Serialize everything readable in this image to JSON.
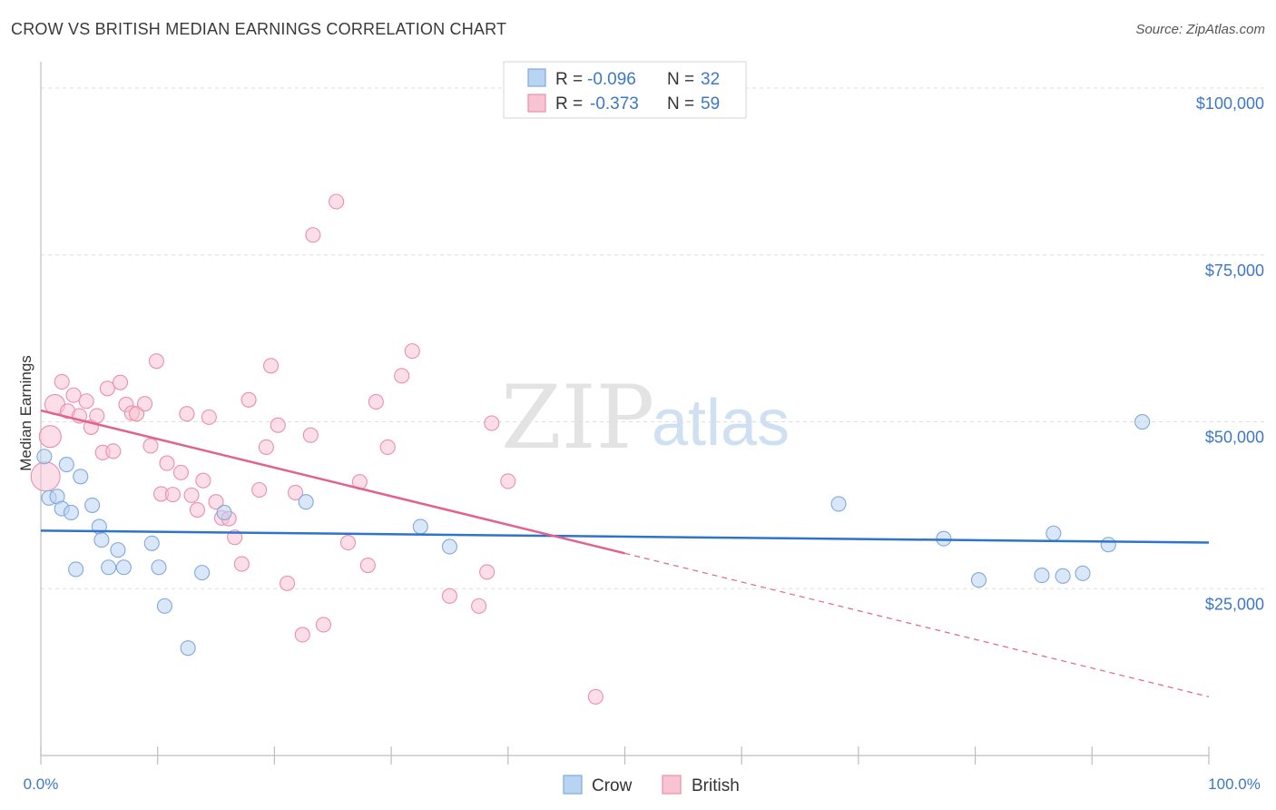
{
  "title": "CROW VS BRITISH MEDIAN EARNINGS CORRELATION CHART",
  "source": "Source: ZipAtlas.com",
  "watermark": {
    "part1": "ZIP",
    "part2": "atlas"
  },
  "legend": {
    "rows": [
      {
        "r_label": "R =",
        "r_value": "-0.096",
        "n_label": "N =",
        "n_value": "32"
      },
      {
        "r_label": "R =",
        "r_value": "-0.373",
        "n_label": "N =",
        "n_value": "59"
      }
    ]
  },
  "bottom_legend": [
    "Crow",
    "British"
  ],
  "colors": {
    "crow_fill": "#b9d3f2",
    "crow_stroke": "#7fa9dc",
    "crow_line": "#2f74cc",
    "british_fill": "#f8c3d3",
    "british_stroke": "#ea8fae",
    "british_line": "#e2628e",
    "tick_text": "#3c78c8",
    "grid": "#dedede"
  },
  "chart_data": {
    "type": "scatter",
    "title": "CROW VS BRITISH MEDIAN EARNINGS CORRELATION CHART",
    "xlabel": "",
    "ylabel": "Median Earnings",
    "xlim": [
      0,
      100
    ],
    "ylim": [
      0,
      103000
    ],
    "x_tick_labels": [
      "0.0%",
      "100.0%"
    ],
    "y_ticks": [
      25000,
      50000,
      75000,
      100000
    ],
    "y_tick_labels": [
      "$25,000",
      "$50,000",
      "$75,000",
      "$100,000"
    ],
    "grid": "horizontal dashed",
    "legend_position": "top-center",
    "series": [
      {
        "name": "Crow",
        "points": [
          [
            0.3,
            44800
          ],
          [
            0.7,
            38600
          ],
          [
            1.4,
            38800
          ],
          [
            1.8,
            37000
          ],
          [
            2.2,
            43600
          ],
          [
            2.6,
            36400
          ],
          [
            3.0,
            27900
          ],
          [
            3.4,
            41800
          ],
          [
            4.4,
            37500
          ],
          [
            5.0,
            34300
          ],
          [
            5.2,
            32300
          ],
          [
            5.8,
            28200
          ],
          [
            6.6,
            30800
          ],
          [
            7.1,
            28200
          ],
          [
            9.5,
            31800
          ],
          [
            10.1,
            28200
          ],
          [
            10.6,
            22400
          ],
          [
            12.6,
            16100
          ],
          [
            13.8,
            27400
          ],
          [
            15.7,
            36400
          ],
          [
            22.7,
            38000
          ],
          [
            32.5,
            34300
          ],
          [
            35.0,
            31300
          ],
          [
            68.3,
            37700
          ],
          [
            77.3,
            32500
          ],
          [
            80.3,
            26300
          ],
          [
            85.7,
            27000
          ],
          [
            86.7,
            33300
          ],
          [
            87.5,
            26900
          ],
          [
            89.2,
            27300
          ],
          [
            91.4,
            31600
          ],
          [
            94.3,
            50000
          ]
        ],
        "trend": {
          "x": [
            0,
            100
          ],
          "y": [
            33700,
            31900
          ]
        }
      },
      {
        "name": "British",
        "points": [
          [
            0.4,
            41800
          ],
          [
            0.8,
            47800
          ],
          [
            1.2,
            52600
          ],
          [
            1.8,
            56000
          ],
          [
            2.3,
            51600
          ],
          [
            2.8,
            54000
          ],
          [
            3.3,
            50900
          ],
          [
            3.9,
            53100
          ],
          [
            4.3,
            49200
          ],
          [
            4.8,
            50900
          ],
          [
            5.3,
            45400
          ],
          [
            5.7,
            55000
          ],
          [
            6.2,
            45600
          ],
          [
            6.8,
            55900
          ],
          [
            7.3,
            52600
          ],
          [
            7.8,
            51300
          ],
          [
            8.2,
            51200
          ],
          [
            8.9,
            52700
          ],
          [
            9.4,
            46400
          ],
          [
            9.9,
            59100
          ],
          [
            10.3,
            39200
          ],
          [
            10.8,
            43800
          ],
          [
            11.3,
            39100
          ],
          [
            12.0,
            42400
          ],
          [
            12.5,
            51200
          ],
          [
            12.9,
            39000
          ],
          [
            13.4,
            36800
          ],
          [
            13.9,
            41200
          ],
          [
            14.4,
            50700
          ],
          [
            15.0,
            38000
          ],
          [
            15.5,
            35600
          ],
          [
            16.1,
            35500
          ],
          [
            16.6,
            32700
          ],
          [
            17.2,
            28700
          ],
          [
            17.8,
            53300
          ],
          [
            18.7,
            39800
          ],
          [
            19.3,
            46200
          ],
          [
            19.7,
            58400
          ],
          [
            20.3,
            49500
          ],
          [
            21.1,
            25800
          ],
          [
            21.8,
            39400
          ],
          [
            22.4,
            18100
          ],
          [
            23.1,
            48000
          ],
          [
            23.3,
            78000
          ],
          [
            24.2,
            19600
          ],
          [
            25.3,
            83000
          ],
          [
            26.3,
            31900
          ],
          [
            27.3,
            41000
          ],
          [
            28.0,
            28500
          ],
          [
            28.7,
            53000
          ],
          [
            29.7,
            46200
          ],
          [
            30.9,
            56900
          ],
          [
            31.8,
            60600
          ],
          [
            35.0,
            23900
          ],
          [
            37.5,
            22400
          ],
          [
            38.2,
            27500
          ],
          [
            38.6,
            49800
          ],
          [
            40.0,
            41100
          ],
          [
            47.5,
            8800
          ]
        ],
        "trend": {
          "x": [
            0,
            50
          ],
          "y": [
            51700,
            30300
          ]
        },
        "trend_extension": {
          "x": [
            50,
            100
          ],
          "y": [
            30300,
            8800
          ]
        }
      }
    ]
  }
}
